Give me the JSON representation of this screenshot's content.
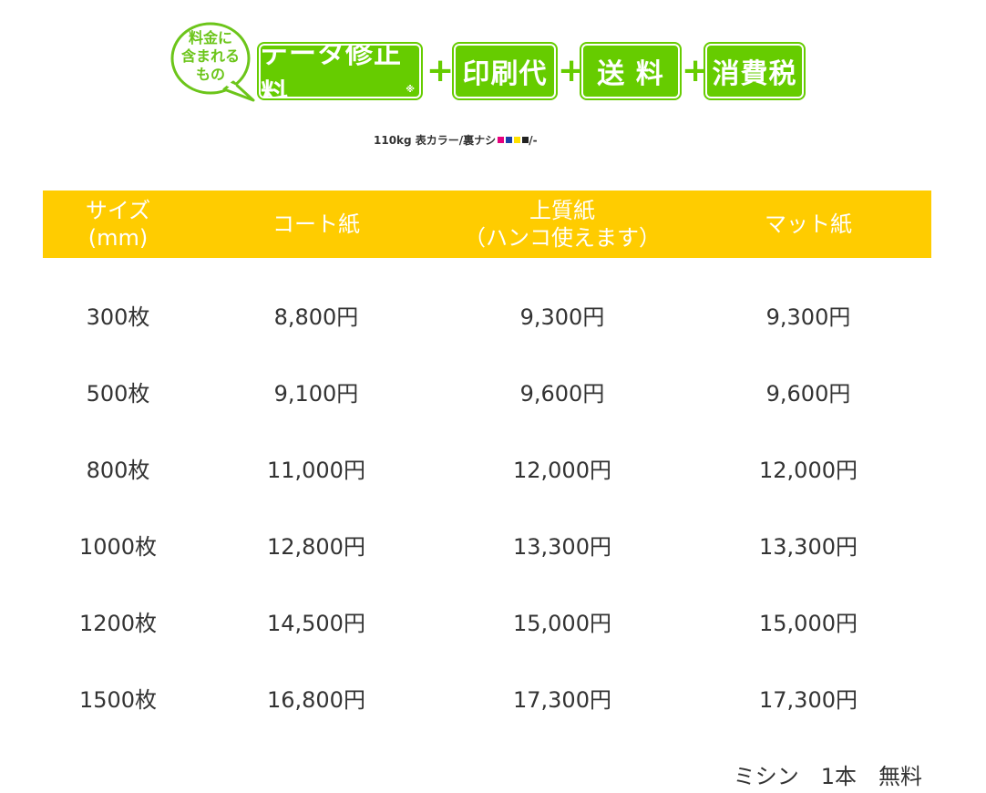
{
  "banner": {
    "bubble_lines": [
      "料金に",
      "含まれる",
      "もの"
    ],
    "items": [
      "データ修正料",
      "印刷代",
      "送 料",
      "消費税"
    ],
    "asterisk": "※",
    "plus": "+",
    "accent_color": "#66cc00"
  },
  "spec": {
    "text": "110kg 表カラー/裏ナシ",
    "suffix": "/-",
    "cmyk_colors": [
      "#e6007e",
      "#1a3fa8",
      "#ffe100",
      "#222222"
    ]
  },
  "table": {
    "header_color": "#ffcc00",
    "headers": [
      [
        "サイズ",
        "(mm)"
      ],
      [
        "コート紙"
      ],
      [
        "上質紙",
        "（ハンコ使えます）"
      ],
      [
        "マット紙"
      ]
    ],
    "rows": [
      [
        "300枚",
        "8,800円",
        "9,300円",
        "9,300円"
      ],
      [
        "500枚",
        "9,100円",
        "9,600円",
        "9,600円"
      ],
      [
        "800枚",
        "11,000円",
        "12,000円",
        "12,000円"
      ],
      [
        "1000枚",
        "12,800円",
        "13,300円",
        "13,300円"
      ],
      [
        "1200枚",
        "14,500円",
        "15,000円",
        "15,000円"
      ],
      [
        "1500枚",
        "16,800円",
        "17,300円",
        "17,300円"
      ]
    ]
  },
  "note": "ミシン　1本　無料"
}
